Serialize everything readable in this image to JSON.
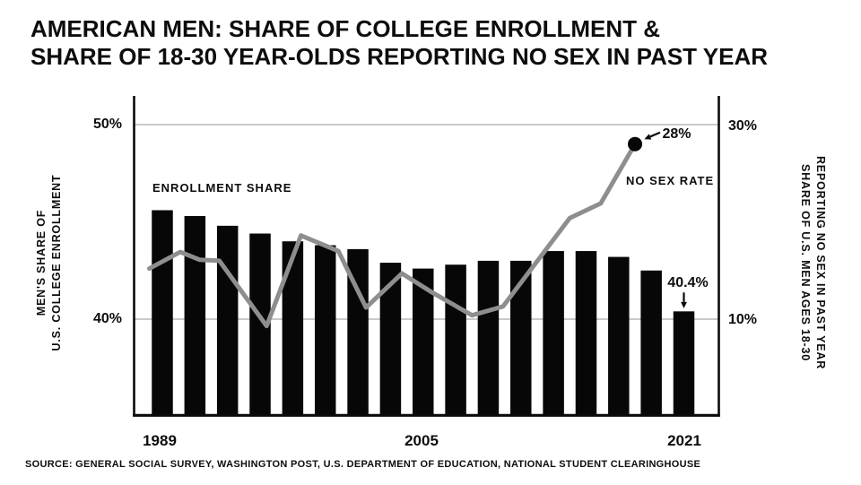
{
  "title": {
    "line1": "AMERICAN MEN: SHARE OF COLLEGE ENROLLMENT &",
    "line2": "SHARE OF 18-30 YEAR-OLDS REPORTING NO SEX IN PAST YEAR"
  },
  "source": "SOURCE: GENERAL SOCIAL SURVEY, WASHINGTON POST, U.S. DEPARTMENT OF EDUCATION, NATIONAL STUDENT CLEARINGHOUSE",
  "annotations": {
    "bar_series_label": "ENROLLMENT SHARE",
    "line_series_label": "NO SEX RATE",
    "final_line_label": "28%",
    "final_bar_label": "40.4%"
  },
  "colors": {
    "background": "#ffffff",
    "bar": "#070707",
    "line": "#8e8e8e",
    "dot": "#070707",
    "gridline": "#a9a9a9",
    "axis": "#0a0a0a",
    "text": "#0d0d0d"
  },
  "chart_data": {
    "type": "bar+line combo",
    "title": "American men: share of college enrollment & share of 18-30 year-olds reporting no sex in past year",
    "grid": "horizontal gridlines at labeled ticks only, drawn behind bars",
    "legend": "inline text annotations instead of legend box",
    "x_axis": {
      "tick_labels": [
        "1989",
        "2005",
        "2021"
      ],
      "tick_years": [
        1989,
        2005,
        2021
      ],
      "range_years": [
        1989,
        2021
      ]
    },
    "left_axis": {
      "label_line1": "MEN'S SHARE OF",
      "label_line2": "U.S. COLLEGE ENROLLMENT",
      "tick_labels": [
        "50%",
        "40%"
      ],
      "gridlines": [
        50,
        40
      ],
      "range": [
        35.1,
        51.4
      ],
      "unit": "%"
    },
    "right_axis": {
      "label_line1": "SHARE OF U.S. MEN AGES 18-30",
      "label_line2": "REPORTING NO SEX IN PAST YEAR",
      "tick_labels": [
        "30%",
        "10%"
      ],
      "gridlines": [
        30,
        10
      ],
      "range": [
        0,
        32.7
      ],
      "unit": "%"
    },
    "bar_series": {
      "name": "ENROLLMENT SHARE",
      "long_name": "Men's share of U.S. college enrollment",
      "axis": "left",
      "unit": "%",
      "years": [
        1989,
        1991,
        1993,
        1995,
        1997,
        1999,
        2001,
        2003,
        2005,
        2007,
        2009,
        2011,
        2013,
        2015,
        2017,
        2019,
        2021
      ],
      "values": [
        45.6,
        45.3,
        44.8,
        44.4,
        44.0,
        43.8,
        43.6,
        42.9,
        42.6,
        42.8,
        43.0,
        43.0,
        43.5,
        43.5,
        43.2,
        42.5,
        40.4
      ],
      "last_value_label": "40.4%"
    },
    "line_series": {
      "name": "NO SEX RATE",
      "long_name": "Share of U.S. men ages 18-30 reporting no sex in past year",
      "axis": "right",
      "unit": "%",
      "points": [
        [
          1988.2,
          15.2
        ],
        [
          1990.1,
          16.9
        ],
        [
          1991.3,
          16.1
        ],
        [
          1992.5,
          16.0
        ],
        [
          1995.4,
          9.3
        ],
        [
          1997.5,
          18.6
        ],
        [
          1999.8,
          17.0
        ],
        [
          2001.5,
          11.2
        ],
        [
          2003.7,
          14.7
        ],
        [
          2005.6,
          12.7
        ],
        [
          2008.0,
          10.4
        ],
        [
          2009.9,
          11.3
        ],
        [
          2014.0,
          20.4
        ],
        [
          2015.9,
          21.9
        ],
        [
          2018.0,
          28.0
        ]
      ],
      "last_value_label": "28%"
    }
  }
}
